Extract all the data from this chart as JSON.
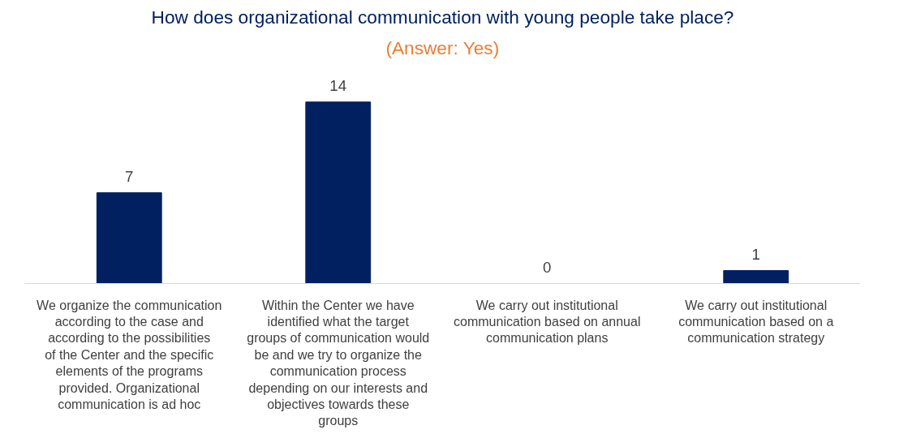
{
  "chart_data": {
    "type": "bar",
    "title": "How does organizational communication with young people take place?",
    "subtitle": "(Answer: Yes)",
    "categories": [
      "We organize the communication according to the case and according to the possibilities of the Center and the specific elements of the programs provided. Organizational communication is ad hoc",
      "Within the Center we have identified what the target groups of communication would be and we try to organize the communication process depending on our interests and objectives towards these groups",
      "We carry out institutional communication based on annual communication plans",
      "We carry out institutional communication based on a communication strategy"
    ],
    "values": [
      7,
      14,
      0,
      1
    ],
    "color": "#002060",
    "data_labels": true,
    "grid": false
  }
}
